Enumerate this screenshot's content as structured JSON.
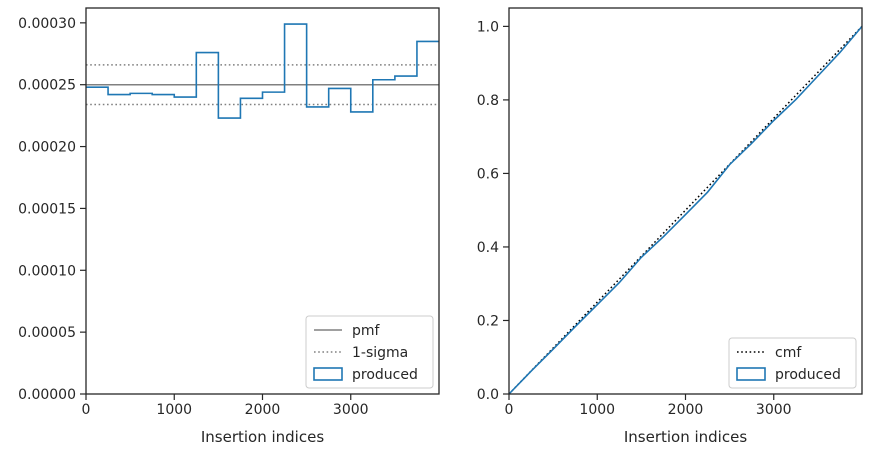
{
  "chart_data": [
    {
      "type": "step",
      "xlabel": "Insertion indices",
      "ylabel": "",
      "xlim": [
        0,
        4000
      ],
      "ylim": [
        0,
        0.000312
      ],
      "xticks": [
        0,
        1000,
        2000,
        3000
      ],
      "xtick_labels": [
        "0",
        "1000",
        "2000",
        "3000"
      ],
      "yticks": [
        0,
        5e-05,
        0.0001,
        0.00015,
        0.0002,
        0.00025,
        0.0003
      ],
      "ytick_labels": [
        "0.00000",
        "0.00005",
        "0.00010",
        "0.00015",
        "0.00020",
        "0.00025",
        "0.00030"
      ],
      "legend_position": "lower-right",
      "lines": [
        {
          "name": "pmf",
          "value": 0.00025,
          "style": "solid",
          "color": "#808080"
        },
        {
          "name": "1-sigma",
          "value": 0.000266,
          "style": "dotted",
          "color": "#808080"
        },
        {
          "name": "1-sigma",
          "value": 0.000234,
          "style": "dotted",
          "color": "#808080"
        }
      ],
      "series": [
        {
          "name": "produced",
          "color": "#1f77b4",
          "bin_edges": [
            0,
            250,
            500,
            750,
            1000,
            1250,
            1500,
            1750,
            2000,
            2250,
            2500,
            2750,
            3000,
            3250,
            3500,
            3750,
            4000
          ],
          "values": [
            0.000248,
            0.000242,
            0.000243,
            0.000242,
            0.00024,
            0.000276,
            0.000223,
            0.000239,
            0.000244,
            0.000299,
            0.000232,
            0.000247,
            0.000228,
            0.000254,
            0.000257,
            0.000285
          ]
        }
      ],
      "legend": [
        "pmf",
        "1-sigma",
        "produced"
      ]
    },
    {
      "type": "step",
      "xlabel": "Insertion indices",
      "ylabel": "",
      "xlim": [
        0,
        4000
      ],
      "ylim": [
        0,
        1.05
      ],
      "xticks": [
        0,
        1000,
        2000,
        3000
      ],
      "xtick_labels": [
        "0",
        "1000",
        "2000",
        "3000"
      ],
      "yticks": [
        0,
        0.2,
        0.4,
        0.6,
        0.8,
        1.0
      ],
      "ytick_labels": [
        "0.0",
        "0.2",
        "0.4",
        "0.6",
        "0.8",
        "1.0"
      ],
      "legend_position": "lower-right",
      "lines": [
        {
          "name": "cmf",
          "style": "dotted",
          "color": "#000000",
          "x": [
            0,
            4000
          ],
          "y": [
            0,
            1.0
          ]
        }
      ],
      "series": [
        {
          "name": "produced",
          "color": "#1f77b4",
          "x": [
            0,
            250,
            500,
            750,
            1000,
            1250,
            1500,
            1750,
            2000,
            2250,
            2500,
            2750,
            3000,
            3250,
            3500,
            3750,
            4000
          ],
          "y": [
            0,
            0.062,
            0.122,
            0.183,
            0.243,
            0.303,
            0.372,
            0.428,
            0.488,
            0.549,
            0.624,
            0.682,
            0.744,
            0.801,
            0.865,
            0.929,
            1.0
          ]
        }
      ],
      "legend": [
        "cmf",
        "produced"
      ]
    }
  ]
}
